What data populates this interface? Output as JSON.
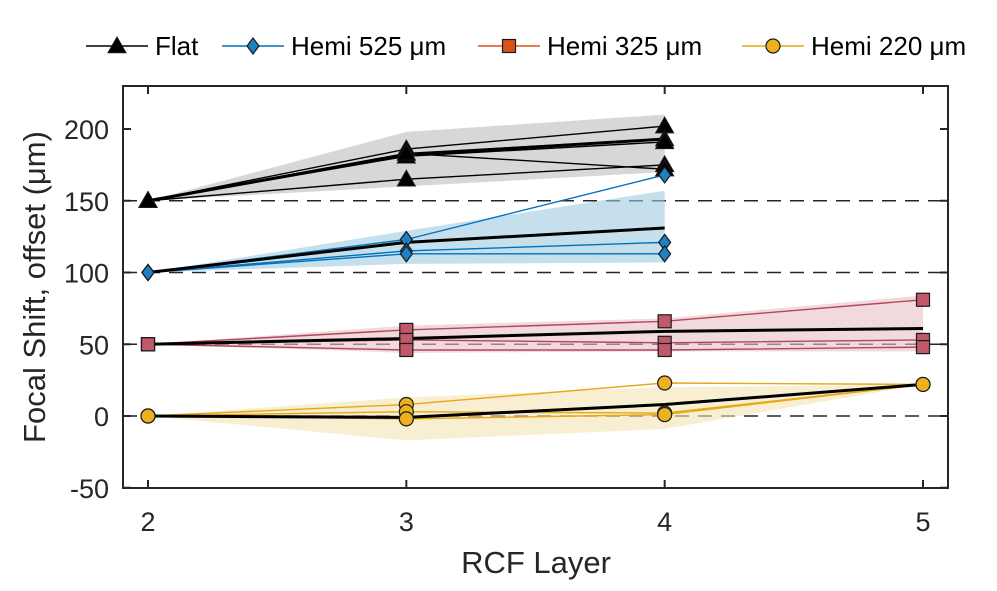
{
  "chart_data": {
    "type": "line",
    "xlabel": "RCF Layer",
    "ylabel": "Focal Shift, offset (μm)",
    "xlim": [
      1.9,
      5.1
    ],
    "ylim": [
      -50,
      230
    ],
    "xticks": [
      2,
      3,
      4,
      5
    ],
    "yticks": [
      -50,
      0,
      50,
      100,
      150,
      200
    ],
    "reference_lines": [
      150,
      100,
      50,
      0
    ],
    "legend_position": "top",
    "series": [
      {
        "name": "Flat",
        "color": "#000000",
        "band_color": "#bdbdbd",
        "marker": "triangle",
        "marker_fill": "#000000",
        "runs": [
          {
            "x": [
              2,
              3,
              4
            ],
            "y": [
              150,
              186,
              202
            ]
          },
          {
            "x": [
              2,
              3,
              4
            ],
            "y": [
              150,
              183,
              193
            ]
          },
          {
            "x": [
              2,
              3,
              4
            ],
            "y": [
              150,
              181,
              191
            ]
          },
          {
            "x": [
              2,
              3,
              4
            ],
            "y": [
              150,
              165,
              175
            ]
          },
          {
            "x": [
              2,
              3,
              4
            ],
            "y": [
              150,
              183,
              172
            ]
          }
        ],
        "mean": {
          "x": [
            2,
            3,
            4
          ],
          "y": [
            150,
            182,
            193
          ]
        },
        "band": {
          "x": [
            2,
            3,
            4
          ],
          "lower": [
            150,
            160,
            170
          ],
          "upper": [
            150,
            198,
            210
          ]
        }
      },
      {
        "name": "Hemi 525 μm",
        "color": "#0072bd",
        "band_color": "#9ecae1",
        "marker": "diamond",
        "marker_fill": "#1f7fc4",
        "runs": [
          {
            "x": [
              2,
              3,
              4
            ],
            "y": [
              100,
              123,
              168
            ]
          },
          {
            "x": [
              2,
              3,
              4
            ],
            "y": [
              100,
              115,
              121
            ]
          },
          {
            "x": [
              2,
              3,
              4
            ],
            "y": [
              100,
              113,
              113
            ]
          }
        ],
        "mean": {
          "x": [
            2,
            3,
            4
          ],
          "y": [
            100,
            121,
            131
          ]
        },
        "band": {
          "x": [
            2,
            3,
            4
          ],
          "lower": [
            100,
            106,
            107
          ],
          "upper": [
            100,
            129,
            157
          ]
        }
      },
      {
        "name": "Hemi 325 μm",
        "color": "#b3485b",
        "band_color": "#e8c0c6",
        "marker": "square",
        "marker_fill": "#c0596b",
        "legend_marker_fill": "#d95319",
        "legend_color": "#d95319",
        "runs": [
          {
            "x": [
              2,
              3,
              4,
              5
            ],
            "y": [
              50,
              60,
              66,
              81
            ]
          },
          {
            "x": [
              2,
              3,
              4,
              5
            ],
            "y": [
              50,
              53,
              51,
              53
            ]
          },
          {
            "x": [
              2,
              3,
              4,
              5
            ],
            "y": [
              50,
              46,
              46,
              48
            ]
          }
        ],
        "mean": {
          "x": [
            2,
            3,
            4,
            5
          ],
          "y": [
            50,
            54,
            59,
            61
          ]
        },
        "band": {
          "x": [
            2,
            3,
            4,
            5
          ],
          "lower": [
            50,
            44,
            45,
            45
          ],
          "upper": [
            50,
            63,
            68,
            84
          ]
        }
      },
      {
        "name": "Hemi 220 μm",
        "color": "#e6a817",
        "band_color": "#f3e2b3",
        "marker": "circle",
        "marker_fill": "#edb120",
        "runs": [
          {
            "x": [
              2,
              3,
              4,
              5
            ],
            "y": [
              0,
              8,
              23,
              22
            ]
          },
          {
            "x": [
              2,
              3,
              4,
              5
            ],
            "y": [
              0,
              3,
              2,
              22
            ]
          },
          {
            "x": [
              2,
              3,
              4,
              5
            ],
            "y": [
              0,
              -2,
              1,
              22
            ]
          }
        ],
        "mean": {
          "x": [
            2,
            3,
            4,
            5
          ],
          "y": [
            0,
            -1,
            8,
            22
          ]
        },
        "band": {
          "x": [
            2,
            3,
            4,
            5
          ],
          "lower": [
            0,
            -17,
            -9,
            22
          ],
          "upper": [
            0,
            13,
            20,
            22
          ]
        }
      }
    ]
  }
}
